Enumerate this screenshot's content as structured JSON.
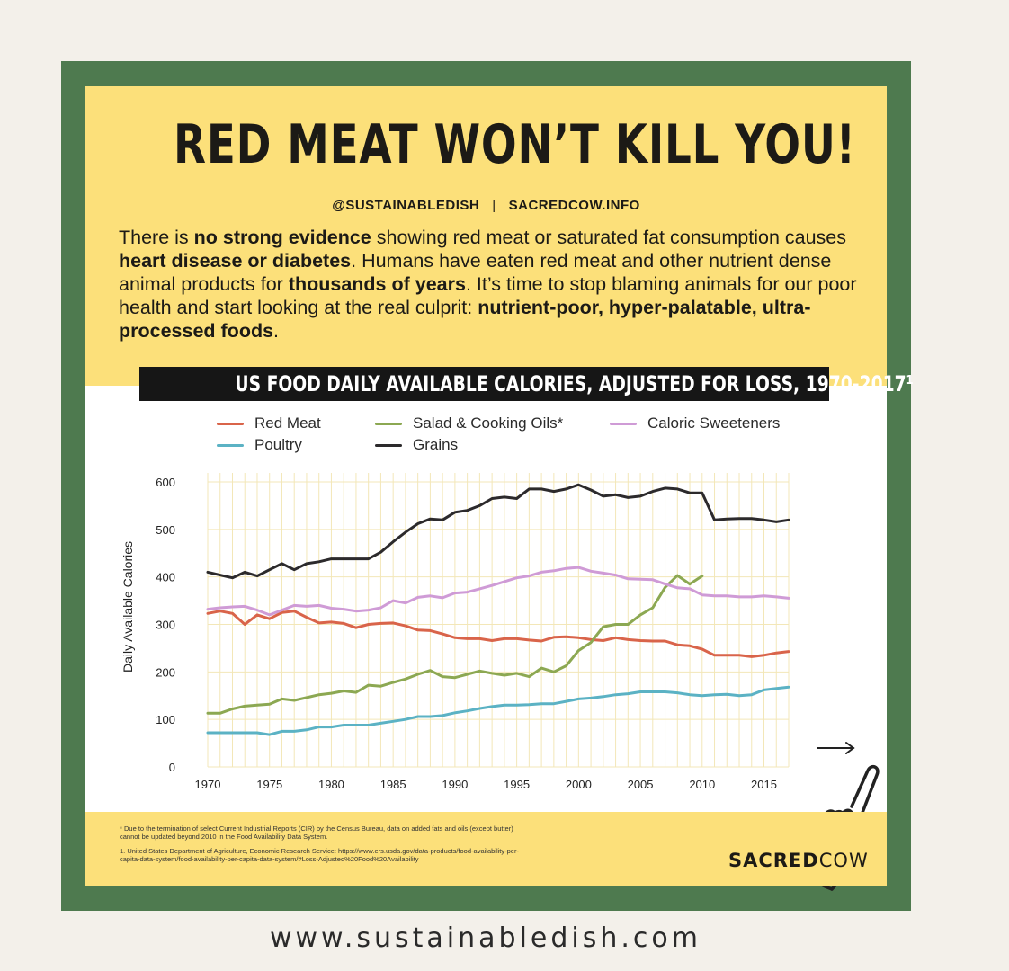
{
  "headline": "RED MEAT WON’T KILL YOU!",
  "handles": {
    "left": "@SUSTAINABLEDISH",
    "divider": "|",
    "right": "SACREDCOW.INFO"
  },
  "intro": [
    {
      "text": "There is ",
      "bold": false
    },
    {
      "text": "no strong evidence",
      "bold": true
    },
    {
      "text": " showing red meat or saturated fat consumption causes ",
      "bold": false
    },
    {
      "text": "heart disease or diabetes",
      "bold": true
    },
    {
      "text": ". Humans have eaten red meat and other nutrient dense animal products for ",
      "bold": false
    },
    {
      "text": "thousands of years",
      "bold": true
    },
    {
      "text": ". It’s time to stop blaming animals for our poor health and start looking at the real culprit: ",
      "bold": false
    },
    {
      "text": "nutrient-poor, hyper-palatable, ultra-processed foods",
      "bold": true
    },
    {
      "text": ".",
      "bold": false
    }
  ],
  "footnotes": {
    "note1": "* Due to the termination of select Current Industrial Reports (CIR) by the Census Bureau, data on added fats and oils (except butter) cannot be updated beyond 2010 in the Food Availability Data System.",
    "note2": "1. United States Department of Agriculture, Economic Research Service: https://www.ers.usda.gov/data-products/food-availability-per-capita-data-system/food-availability-per-capita-data-system/#Loss-Adjusted%20Food%20Availability"
  },
  "brand": {
    "part1": "SACRED",
    "part2": "COW"
  },
  "website": "www.sustainabledish.com",
  "icons": {
    "swipe": "hand-pointer-icon",
    "arrow": "arrow-right-icon"
  },
  "chart_data": {
    "type": "line",
    "title": "US FOOD DAILY AVAILABLE CALORIES, ADJUSTED FOR LOSS, 1970-2017¹",
    "xlabel": "",
    "ylabel": "Daily Available Calories",
    "xlim": [
      1970,
      2017
    ],
    "ylim": [
      0,
      600
    ],
    "xticks": [
      1970,
      1975,
      1980,
      1985,
      1990,
      1995,
      2000,
      2005,
      2010,
      2015
    ],
    "yticks": [
      0,
      100,
      200,
      300,
      400,
      500,
      600
    ],
    "grid": true,
    "legend": "top",
    "series": [
      {
        "name": "Red Meat",
        "color": "#d9644a",
        "x": [
          1970,
          1971,
          1972,
          1973,
          1974,
          1975,
          1976,
          1977,
          1978,
          1979,
          1980,
          1981,
          1982,
          1983,
          1984,
          1985,
          1986,
          1987,
          1988,
          1989,
          1990,
          1991,
          1992,
          1993,
          1994,
          1995,
          1996,
          1997,
          1998,
          1999,
          2000,
          2001,
          2002,
          2003,
          2004,
          2005,
          2006,
          2007,
          2008,
          2009,
          2010,
          2011,
          2012,
          2013,
          2014,
          2015,
          2016,
          2017
        ],
        "y": [
          323,
          328,
          323,
          300,
          320,
          312,
          325,
          328,
          315,
          303,
          305,
          302,
          293,
          300,
          302,
          303,
          297,
          288,
          287,
          280,
          272,
          270,
          270,
          266,
          270,
          270,
          267,
          265,
          273,
          274,
          272,
          268,
          266,
          272,
          268,
          266,
          265,
          265,
          257,
          255,
          248,
          235,
          235,
          235,
          232,
          235,
          240,
          243
        ]
      },
      {
        "name": "Salad & Cooking Oils*",
        "color": "#8ca852",
        "x": [
          1970,
          1971,
          1972,
          1973,
          1974,
          1975,
          1976,
          1977,
          1978,
          1979,
          1980,
          1981,
          1982,
          1983,
          1984,
          1985,
          1986,
          1987,
          1988,
          1989,
          1990,
          1991,
          1992,
          1993,
          1994,
          1995,
          1996,
          1997,
          1998,
          1999,
          2000,
          2001,
          2002,
          2003,
          2004,
          2005,
          2006,
          2007,
          2008,
          2009,
          2010
        ],
        "y": [
          113,
          113,
          122,
          128,
          130,
          132,
          143,
          140,
          146,
          152,
          155,
          160,
          157,
          172,
          170,
          178,
          185,
          195,
          203,
          190,
          188,
          195,
          202,
          197,
          193,
          197,
          190,
          208,
          200,
          213,
          245,
          262,
          295,
          300,
          300,
          320,
          335,
          378,
          403,
          385,
          402
        ]
      },
      {
        "name": "Caloric Sweeteners",
        "color": "#cf9bd6",
        "x": [
          1970,
          1971,
          1972,
          1973,
          1974,
          1975,
          1976,
          1977,
          1978,
          1979,
          1980,
          1981,
          1982,
          1983,
          1984,
          1985,
          1986,
          1987,
          1988,
          1989,
          1990,
          1991,
          1992,
          1993,
          1994,
          1995,
          1996,
          1997,
          1998,
          1999,
          2000,
          2001,
          2002,
          2003,
          2004,
          2005,
          2006,
          2007,
          2008,
          2009,
          2010,
          2011,
          2012,
          2013,
          2014,
          2015,
          2016,
          2017
        ],
        "y": [
          332,
          335,
          337,
          338,
          330,
          320,
          330,
          340,
          338,
          340,
          334,
          332,
          328,
          330,
          335,
          350,
          345,
          357,
          360,
          356,
          366,
          368,
          375,
          382,
          390,
          398,
          402,
          410,
          413,
          418,
          420,
          412,
          408,
          404,
          396,
          395,
          394,
          385,
          377,
          375,
          362,
          360,
          360,
          358,
          358,
          360,
          358,
          355
        ]
      },
      {
        "name": "Poultry",
        "color": "#5bb2c4",
        "x": [
          1970,
          1971,
          1972,
          1973,
          1974,
          1975,
          1976,
          1977,
          1978,
          1979,
          1980,
          1981,
          1982,
          1983,
          1984,
          1985,
          1986,
          1987,
          1988,
          1989,
          1990,
          1991,
          1992,
          1993,
          1994,
          1995,
          1996,
          1997,
          1998,
          1999,
          2000,
          2001,
          2002,
          2003,
          2004,
          2005,
          2006,
          2007,
          2008,
          2009,
          2010,
          2011,
          2012,
          2013,
          2014,
          2015,
          2016,
          2017
        ],
        "y": [
          72,
          72,
          72,
          72,
          72,
          68,
          75,
          75,
          78,
          84,
          84,
          88,
          88,
          88,
          92,
          96,
          100,
          106,
          106,
          108,
          114,
          118,
          123,
          127,
          130,
          130,
          131,
          133,
          133,
          138,
          143,
          145,
          148,
          152,
          154,
          158,
          158,
          158,
          156,
          152,
          150,
          152,
          153,
          150,
          152,
          162,
          165,
          168
        ]
      },
      {
        "name": "Grains",
        "color": "#2c2a2c",
        "x": [
          1970,
          1971,
          1972,
          1973,
          1974,
          1975,
          1976,
          1977,
          1978,
          1979,
          1980,
          1981,
          1982,
          1983,
          1984,
          1985,
          1986,
          1987,
          1988,
          1989,
          1990,
          1991,
          1992,
          1993,
          1994,
          1995,
          1996,
          1997,
          1998,
          1999,
          2000,
          2001,
          2002,
          2003,
          2004,
          2005,
          2006,
          2007,
          2008,
          2009,
          2010,
          2011,
          2012,
          2013,
          2014,
          2015,
          2016,
          2017
        ],
        "y": [
          410,
          404,
          398,
          410,
          402,
          415,
          428,
          415,
          428,
          432,
          438,
          438,
          438,
          438,
          452,
          474,
          494,
          512,
          522,
          520,
          536,
          540,
          550,
          565,
          568,
          565,
          585,
          585,
          580,
          585,
          594,
          583,
          570,
          573,
          567,
          570,
          580,
          587,
          585,
          577,
          577,
          520,
          522,
          523,
          523,
          520,
          516,
          520
        ]
      }
    ]
  }
}
